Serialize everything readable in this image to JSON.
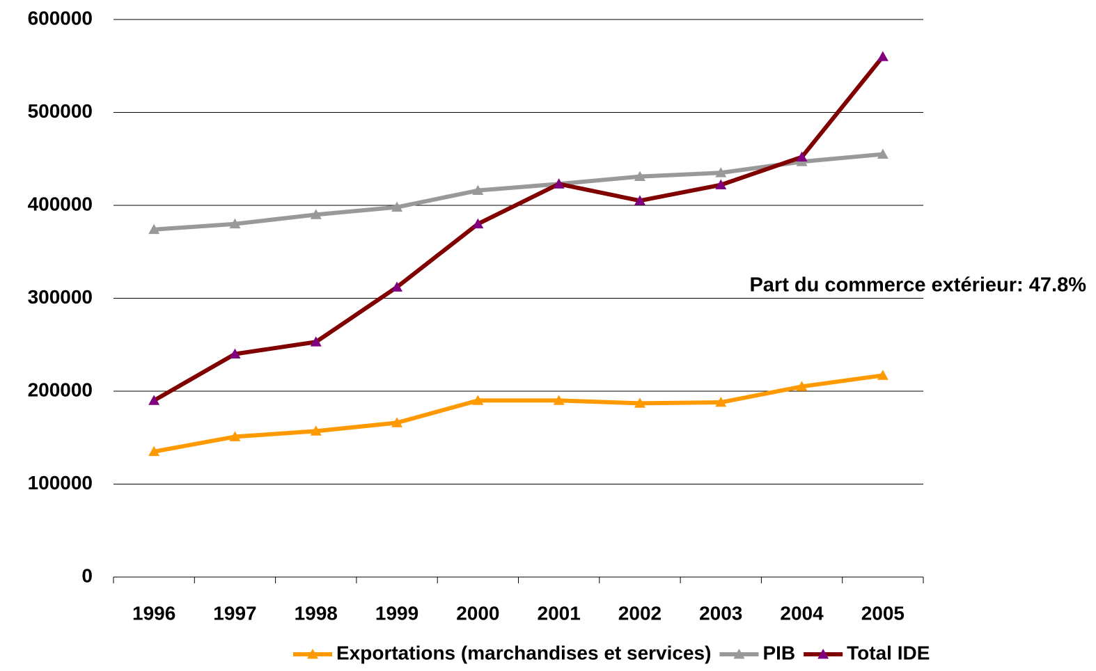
{
  "chart_data": {
    "type": "line",
    "annotation": "Part du commerce extérieur: 47.8%",
    "categories": [
      "1996",
      "1997",
      "1998",
      "1999",
      "2000",
      "2001",
      "2002",
      "2003",
      "2004",
      "2005"
    ],
    "series": [
      {
        "name": "Exportations (marchandises et services)",
        "color": "#ff9900",
        "marker_color": "#ff9900",
        "values": [
          135000,
          151000,
          157000,
          166000,
          190000,
          190000,
          187000,
          188000,
          205000,
          217000
        ]
      },
      {
        "name": "PIB",
        "color": "#999999",
        "marker_color": "#999999",
        "values": [
          374000,
          380000,
          390000,
          398000,
          416000,
          423000,
          431000,
          435000,
          447000,
          455000
        ]
      },
      {
        "name": "Total IDE",
        "color": "#800000",
        "marker_color": "#800080",
        "values": [
          190000,
          240000,
          253000,
          312000,
          380000,
          423000,
          405000,
          422000,
          452000,
          560000
        ]
      }
    ],
    "ylim": [
      0,
      600000
    ],
    "yticks": [
      0,
      100000,
      200000,
      300000,
      400000,
      500000,
      600000
    ],
    "grid": true,
    "legend": "bottom"
  }
}
